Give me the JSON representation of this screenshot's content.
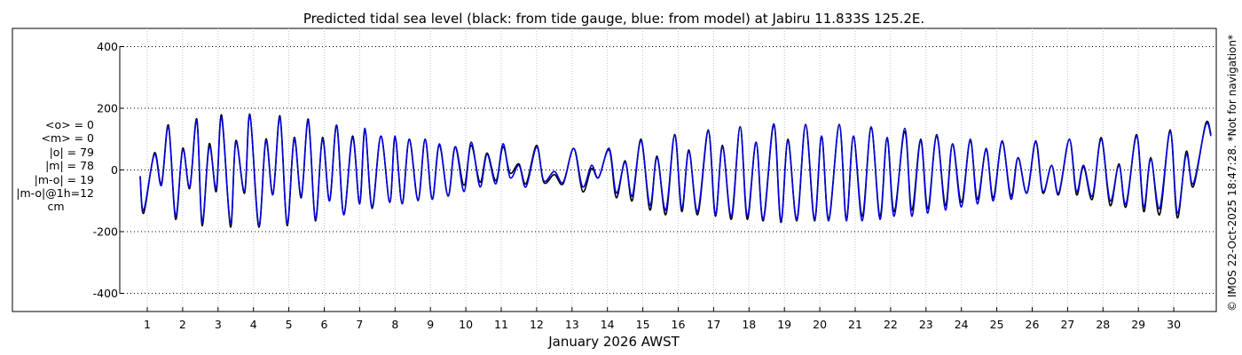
{
  "chart_data": {
    "type": "line",
    "title": "Predicted tidal sea level (black: from tide gauge, blue: from model) at Jabiru 11.833S 125.2E.",
    "xlabel": "January 2026 AWST",
    "ylabel": "",
    "xlim": [
      0.7,
      31.1
    ],
    "ylim": [
      -450,
      450
    ],
    "yticks": [
      400,
      200,
      0,
      -200,
      -400
    ],
    "xticks": [
      "1",
      "2",
      "3",
      "4",
      "5",
      "6",
      "7",
      "8",
      "9",
      "10",
      "11",
      "12",
      "13",
      "14",
      "15",
      "16",
      "17",
      "18",
      "19",
      "20",
      "21",
      "22",
      "23",
      "24",
      "25",
      "26",
      "27",
      "28",
      "29",
      "30"
    ],
    "grid": true,
    "watermark": "© IMOS 22-Oct-2025 18:47:28. *Not for navigation*",
    "series": [
      {
        "name": "from tide gauge",
        "color": "#000000",
        "values": [
          [
            0.8,
            -20
          ],
          [
            0.9,
            -140
          ],
          [
            1.2,
            55
          ],
          [
            1.4,
            -45
          ],
          [
            1.6,
            145
          ],
          [
            1.8,
            -160
          ],
          [
            2.0,
            70
          ],
          [
            2.2,
            -60
          ],
          [
            2.4,
            165
          ],
          [
            2.55,
            -180
          ],
          [
            2.75,
            85
          ],
          [
            2.95,
            -70
          ],
          [
            3.1,
            178
          ],
          [
            3.35,
            -185
          ],
          [
            3.5,
            95
          ],
          [
            3.75,
            -75
          ],
          [
            3.9,
            180
          ],
          [
            4.15,
            -185
          ],
          [
            4.35,
            100
          ],
          [
            4.55,
            -80
          ],
          [
            4.75,
            175
          ],
          [
            4.95,
            -180
          ],
          [
            5.15,
            105
          ],
          [
            5.35,
            -90
          ],
          [
            5.55,
            165
          ],
          [
            5.75,
            -165
          ],
          [
            5.95,
            105
          ],
          [
            6.15,
            -100
          ],
          [
            6.35,
            145
          ],
          [
            6.55,
            -145
          ],
          [
            6.8,
            110
          ],
          [
            7.0,
            -110
          ],
          [
            7.15,
            130
          ],
          [
            7.35,
            -120
          ],
          [
            7.6,
            110
          ],
          [
            7.85,
            -105
          ],
          [
            8.0,
            105
          ],
          [
            8.2,
            -110
          ],
          [
            8.4,
            100
          ],
          [
            8.65,
            -95
          ],
          [
            8.85,
            100
          ],
          [
            9.05,
            -95
          ],
          [
            9.25,
            80
          ],
          [
            9.5,
            -85
          ],
          [
            9.7,
            75
          ],
          [
            9.95,
            -50
          ],
          [
            10.15,
            80
          ],
          [
            10.4,
            -40
          ],
          [
            10.6,
            55
          ],
          [
            10.85,
            -35
          ],
          [
            11.05,
            75
          ],
          [
            11.25,
            -10
          ],
          [
            11.5,
            20
          ],
          [
            11.7,
            -45
          ],
          [
            12.0,
            80
          ],
          [
            12.2,
            -40
          ],
          [
            12.5,
            -15
          ],
          [
            12.75,
            -45
          ],
          [
            13.05,
            70
          ],
          [
            13.3,
            -70
          ],
          [
            13.55,
            5
          ],
          [
            13.75,
            -25
          ],
          [
            14.05,
            65
          ],
          [
            14.25,
            -90
          ],
          [
            14.5,
            30
          ],
          [
            14.7,
            -100
          ],
          [
            14.95,
            100
          ],
          [
            15.2,
            -130
          ],
          [
            15.4,
            45
          ],
          [
            15.65,
            -145
          ],
          [
            15.9,
            115
          ],
          [
            16.1,
            -135
          ],
          [
            16.3,
            65
          ],
          [
            16.55,
            -145
          ],
          [
            16.85,
            125
          ],
          [
            17.05,
            -150
          ],
          [
            17.25,
            80
          ],
          [
            17.5,
            -160
          ],
          [
            17.75,
            140
          ],
          [
            17.95,
            -160
          ],
          [
            18.2,
            90
          ],
          [
            18.4,
            -165
          ],
          [
            18.7,
            145
          ],
          [
            18.9,
            -170
          ],
          [
            19.1,
            100
          ],
          [
            19.35,
            -165
          ],
          [
            19.6,
            145
          ],
          [
            19.85,
            -165
          ],
          [
            20.05,
            110
          ],
          [
            20.25,
            -160
          ],
          [
            20.55,
            145
          ],
          [
            20.75,
            -160
          ],
          [
            20.95,
            110
          ],
          [
            21.2,
            -150
          ],
          [
            21.45,
            135
          ],
          [
            21.7,
            -150
          ],
          [
            21.9,
            105
          ],
          [
            22.1,
            -135
          ],
          [
            22.4,
            125
          ],
          [
            22.6,
            -130
          ],
          [
            22.85,
            100
          ],
          [
            23.05,
            -125
          ],
          [
            23.3,
            110
          ],
          [
            23.55,
            -115
          ],
          [
            23.75,
            85
          ],
          [
            24.0,
            -105
          ],
          [
            24.25,
            95
          ],
          [
            24.45,
            -95
          ],
          [
            24.7,
            65
          ],
          [
            24.9,
            -90
          ],
          [
            25.15,
            90
          ],
          [
            25.4,
            -85
          ],
          [
            25.6,
            40
          ],
          [
            25.85,
            -75
          ],
          [
            26.1,
            90
          ],
          [
            26.3,
            -75
          ],
          [
            26.55,
            15
          ],
          [
            26.75,
            -80
          ],
          [
            27.05,
            100
          ],
          [
            27.25,
            -80
          ],
          [
            27.45,
            10
          ],
          [
            27.7,
            -95
          ],
          [
            27.95,
            105
          ],
          [
            28.2,
            -115
          ],
          [
            28.45,
            20
          ],
          [
            28.65,
            -120
          ],
          [
            28.95,
            115
          ],
          [
            29.15,
            -135
          ],
          [
            29.35,
            40
          ],
          [
            29.6,
            -145
          ],
          [
            29.9,
            130
          ],
          [
            30.1,
            -155
          ],
          [
            30.35,
            60
          ],
          [
            30.55,
            -55
          ],
          [
            30.9,
            150
          ],
          [
            31.05,
            115
          ]
        ]
      },
      {
        "name": "from model",
        "color": "#0000dd",
        "values": [
          [
            0.8,
            -25
          ],
          [
            0.9,
            -130
          ],
          [
            1.2,
            50
          ],
          [
            1.4,
            -50
          ],
          [
            1.6,
            140
          ],
          [
            1.8,
            -150
          ],
          [
            2.0,
            65
          ],
          [
            2.2,
            -55
          ],
          [
            2.4,
            160
          ],
          [
            2.55,
            -170
          ],
          [
            2.75,
            75
          ],
          [
            2.95,
            -60
          ],
          [
            3.1,
            170
          ],
          [
            3.35,
            -175
          ],
          [
            3.5,
            90
          ],
          [
            3.75,
            -70
          ],
          [
            3.9,
            178
          ],
          [
            4.15,
            -180
          ],
          [
            4.35,
            95
          ],
          [
            4.55,
            -80
          ],
          [
            4.75,
            170
          ],
          [
            4.95,
            -175
          ],
          [
            5.15,
            100
          ],
          [
            5.35,
            -85
          ],
          [
            5.55,
            160
          ],
          [
            5.75,
            -160
          ],
          [
            5.95,
            100
          ],
          [
            6.15,
            -100
          ],
          [
            6.35,
            145
          ],
          [
            6.55,
            -145
          ],
          [
            6.8,
            105
          ],
          [
            7.0,
            -110
          ],
          [
            7.15,
            135
          ],
          [
            7.35,
            -125
          ],
          [
            7.6,
            110
          ],
          [
            7.85,
            -105
          ],
          [
            8.0,
            110
          ],
          [
            8.2,
            -110
          ],
          [
            8.4,
            100
          ],
          [
            8.65,
            -100
          ],
          [
            8.85,
            100
          ],
          [
            9.05,
            -95
          ],
          [
            9.25,
            85
          ],
          [
            9.5,
            -85
          ],
          [
            9.7,
            75
          ],
          [
            9.95,
            -70
          ],
          [
            10.15,
            90
          ],
          [
            10.4,
            -55
          ],
          [
            10.6,
            50
          ],
          [
            10.85,
            -45
          ],
          [
            11.05,
            85
          ],
          [
            11.25,
            -25
          ],
          [
            11.5,
            15
          ],
          [
            11.7,
            -55
          ],
          [
            12.0,
            75
          ],
          [
            12.2,
            -35
          ],
          [
            12.5,
            -5
          ],
          [
            12.75,
            -40
          ],
          [
            13.05,
            70
          ],
          [
            13.3,
            -55
          ],
          [
            13.55,
            15
          ],
          [
            13.75,
            -25
          ],
          [
            14.05,
            70
          ],
          [
            14.25,
            -75
          ],
          [
            14.5,
            25
          ],
          [
            14.7,
            -85
          ],
          [
            14.95,
            95
          ],
          [
            15.2,
            -115
          ],
          [
            15.4,
            40
          ],
          [
            15.65,
            -130
          ],
          [
            15.9,
            115
          ],
          [
            16.1,
            -125
          ],
          [
            16.3,
            60
          ],
          [
            16.55,
            -135
          ],
          [
            16.85,
            130
          ],
          [
            17.05,
            -145
          ],
          [
            17.25,
            75
          ],
          [
            17.5,
            -150
          ],
          [
            17.75,
            140
          ],
          [
            17.95,
            -150
          ],
          [
            18.2,
            90
          ],
          [
            18.4,
            -160
          ],
          [
            18.7,
            150
          ],
          [
            18.9,
            -165
          ],
          [
            19.1,
            95
          ],
          [
            19.35,
            -160
          ],
          [
            19.6,
            148
          ],
          [
            19.85,
            -160
          ],
          [
            20.05,
            110
          ],
          [
            20.25,
            -165
          ],
          [
            20.55,
            148
          ],
          [
            20.75,
            -165
          ],
          [
            20.95,
            110
          ],
          [
            21.2,
            -165
          ],
          [
            21.45,
            140
          ],
          [
            21.7,
            -160
          ],
          [
            21.9,
            105
          ],
          [
            22.1,
            -150
          ],
          [
            22.4,
            135
          ],
          [
            22.6,
            -150
          ],
          [
            22.85,
            95
          ],
          [
            23.05,
            -140
          ],
          [
            23.3,
            115
          ],
          [
            23.55,
            -130
          ],
          [
            23.75,
            85
          ],
          [
            24.0,
            -120
          ],
          [
            24.25,
            100
          ],
          [
            24.45,
            -110
          ],
          [
            24.7,
            70
          ],
          [
            24.9,
            -100
          ],
          [
            25.15,
            95
          ],
          [
            25.4,
            -95
          ],
          [
            25.6,
            40
          ],
          [
            25.85,
            -75
          ],
          [
            26.1,
            95
          ],
          [
            26.3,
            -70
          ],
          [
            26.55,
            15
          ],
          [
            26.75,
            -75
          ],
          [
            27.05,
            100
          ],
          [
            27.25,
            -70
          ],
          [
            27.45,
            15
          ],
          [
            27.7,
            -85
          ],
          [
            27.95,
            100
          ],
          [
            28.2,
            -100
          ],
          [
            28.45,
            15
          ],
          [
            28.65,
            -110
          ],
          [
            28.95,
            110
          ],
          [
            29.15,
            -120
          ],
          [
            29.35,
            35
          ],
          [
            29.6,
            -125
          ],
          [
            29.9,
            125
          ],
          [
            30.1,
            -140
          ],
          [
            30.35,
            50
          ],
          [
            30.55,
            -45
          ],
          [
            30.9,
            145
          ],
          [
            31.05,
            110
          ]
        ]
      }
    ]
  },
  "stats": {
    "mean_o": "<o> = 0",
    "mean_m": "<m> = 0",
    "abs_o": "|o| = 79",
    "abs_m": "|m| = 78",
    "abs_mo": "|m-o| = 19",
    "abs_mo_1h": "|m-o|@1h=12",
    "unit": "cm"
  }
}
